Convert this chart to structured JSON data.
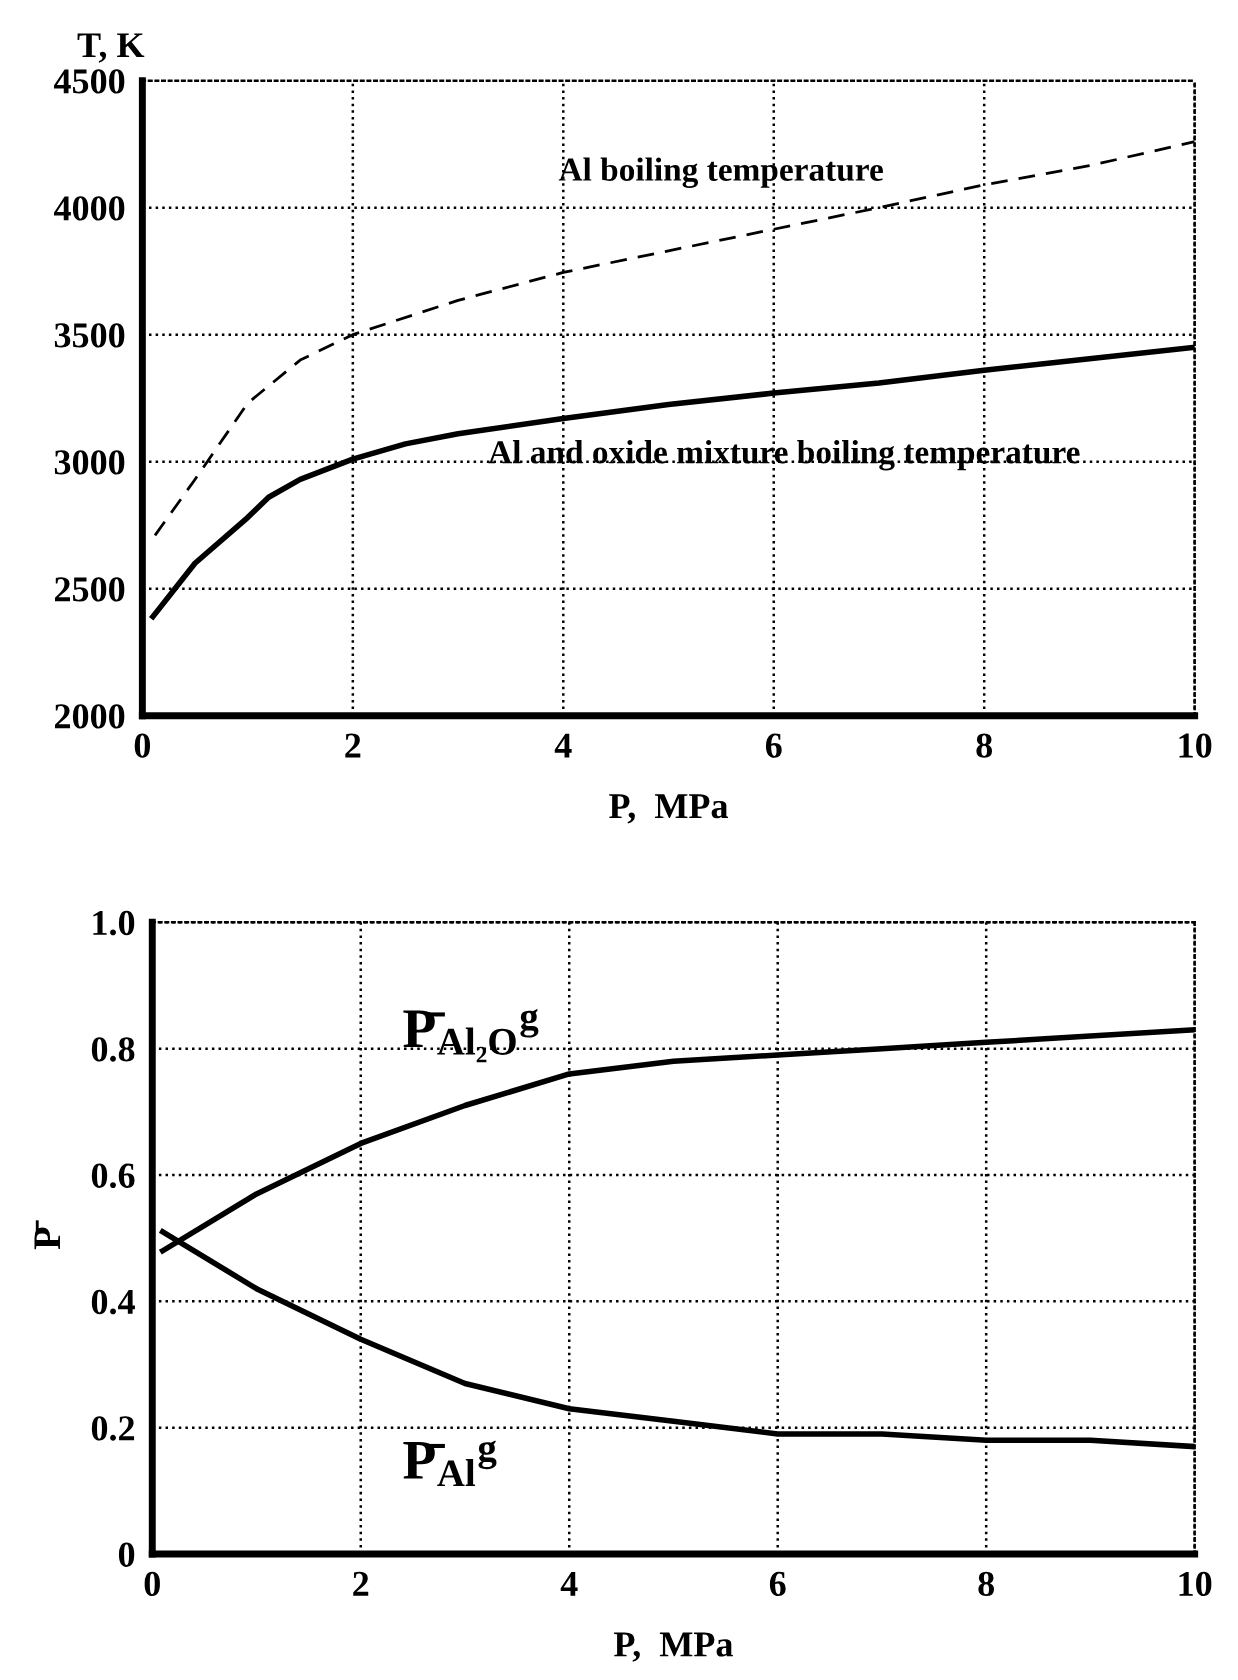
{
  "chart_data": [
    {
      "type": "line",
      "ylabel": "T, K",
      "xlabel": "P,  MPa",
      "xlim": [
        0,
        10
      ],
      "ylim": [
        2000,
        4500
      ],
      "xticks": [
        0,
        2,
        4,
        6,
        8,
        10
      ],
      "yticks": [
        2000,
        2500,
        3000,
        3500,
        4000,
        4500
      ],
      "grid": true,
      "legend": false,
      "series": [
        {
          "name": "Al boiling temperature",
          "color": "#000000",
          "line_style": "dashed",
          "x": [
            0.12,
            0.5,
            1,
            1.5,
            2,
            3,
            4,
            5,
            6,
            7,
            8,
            9,
            10
          ],
          "values": [
            2710,
            2930,
            3230,
            3400,
            3500,
            3635,
            3745,
            3830,
            3915,
            4000,
            4090,
            4165,
            4260
          ]
        },
        {
          "name": "Al and oxide mixture boiling temperature",
          "color": "#000000",
          "line_style": "solid",
          "x": [
            0.1,
            0.5,
            1,
            1.2,
            1.5,
            2,
            2.5,
            3,
            4,
            5,
            6,
            7,
            8,
            9,
            10
          ],
          "values": [
            2390,
            2600,
            2780,
            2860,
            2930,
            3010,
            3070,
            3110,
            3170,
            3225,
            3270,
            3310,
            3360,
            3405,
            3450
          ]
        }
      ]
    },
    {
      "type": "line",
      "ylabel": "P̄",
      "xlabel": "P,  MPa",
      "xlim": [
        0,
        10
      ],
      "ylim": [
        0,
        1.0
      ],
      "xticks": [
        0,
        2,
        4,
        6,
        8,
        10
      ],
      "yticks": [
        0,
        0.2,
        0.4,
        0.6,
        0.8,
        {
          "value": 1.0,
          "label": "1.0"
        }
      ],
      "grid": true,
      "legend": false,
      "series": [
        {
          "name": "P̄$_{Al₂O}$$^{g}$",
          "color": "#000000",
          "line_style": "solid",
          "x": [
            0.1,
            1,
            2,
            3,
            4,
            5,
            6,
            7,
            8,
            9,
            10
          ],
          "values": [
            0.48,
            0.57,
            0.65,
            0.71,
            0.76,
            0.78,
            0.79,
            0.8,
            0.81,
            0.82,
            0.83
          ]
        },
        {
          "name": "P̄$_{Al}$$^{g}$",
          "color": "#000000",
          "line_style": "solid",
          "x": [
            0.1,
            1,
            2,
            3,
            4,
            5,
            6,
            7,
            8,
            9,
            10
          ],
          "values": [
            0.51,
            0.42,
            0.34,
            0.27,
            0.23,
            0.21,
            0.19,
            0.19,
            0.18,
            0.18,
            0.17
          ]
        }
      ]
    }
  ]
}
